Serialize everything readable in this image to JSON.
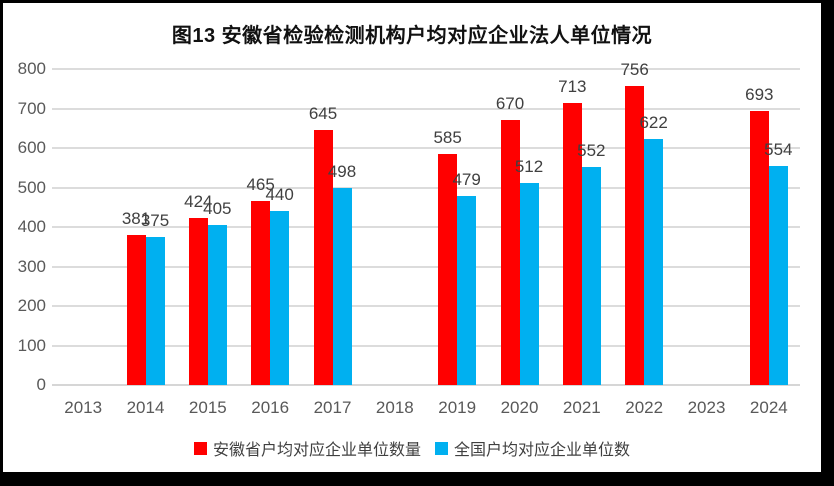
{
  "chart_data": {
    "type": "bar",
    "title": "图13 安徽省检验检测机构户均对应企业法人单位情况",
    "categories": [
      "2013",
      "2014",
      "2015",
      "2016",
      "2017",
      "2018",
      "2019",
      "2020",
      "2021",
      "2022",
      "2023",
      "2024"
    ],
    "series": [
      {
        "name": "安徽省户均对应企业单位数量",
        "color": "#FF0000",
        "values": [
          null,
          381,
          424,
          465,
          645,
          null,
          585,
          670,
          713,
          756,
          null,
          693
        ]
      },
      {
        "name": "全国户均对应企业单位数",
        "color": "#00B0F0",
        "values": [
          null,
          375,
          405,
          440,
          498,
          null,
          479,
          512,
          552,
          622,
          null,
          554
        ]
      }
    ],
    "ylim": [
      0,
      800
    ],
    "ytick_step": 100,
    "yticks": [
      0,
      100,
      200,
      300,
      400,
      500,
      600,
      700,
      800
    ],
    "grid": true,
    "gridline_color": "#DCDCDC",
    "axis_text_color": "#595959",
    "data_label_color": "#404040",
    "legend_position": "bottom",
    "frame_color": "#000000",
    "background_color": "#FFFFFF"
  }
}
